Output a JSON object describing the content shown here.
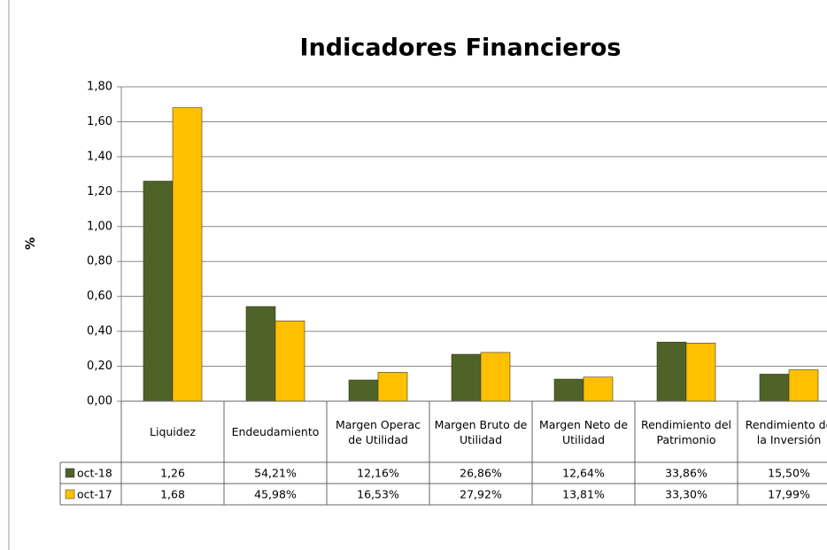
{
  "chart_data": {
    "type": "bar",
    "title": "Indicadores Financieros",
    "y_label": "%",
    "categories": [
      "Liquidez",
      "Endeudamiento",
      "Margen Operac de Utilidad",
      "Margen Bruto de Utilidad",
      "Margen Neto de Utilidad",
      "Rendimiento del Patrimonio",
      "Rendimiento de la Inversión"
    ],
    "series": [
      {
        "name": "oct-18",
        "color": "#4f6228",
        "values": [
          1.26,
          0.5421,
          0.1216,
          0.2686,
          0.1264,
          0.3386,
          0.155
        ],
        "value_labels": [
          "1,26",
          "54,21%",
          "12,16%",
          "26,86%",
          "12,64%",
          "33,86%",
          "15,50%"
        ]
      },
      {
        "name": "oct-17",
        "color": "#ffc000",
        "values": [
          1.68,
          0.4598,
          0.1653,
          0.2792,
          0.1381,
          0.333,
          0.1799
        ],
        "value_labels": [
          "1,68",
          "45,98%",
          "16,53%",
          "27,92%",
          "13,81%",
          "33,30%",
          "17,99%"
        ]
      }
    ],
    "ylim": [
      0,
      1.8
    ],
    "yticks": [
      {
        "value": 0,
        "label": "0,00"
      },
      {
        "value": 0.2,
        "label": "0,20"
      },
      {
        "value": 0.4,
        "label": "0,40"
      },
      {
        "value": 0.6,
        "label": "0,60"
      },
      {
        "value": 0.8,
        "label": "0,80"
      },
      {
        "value": 1.0,
        "label": "1,00"
      },
      {
        "value": 1.2,
        "label": "1,20"
      },
      {
        "value": 1.4,
        "label": "1,40"
      },
      {
        "value": 1.6,
        "label": "1,60"
      },
      {
        "value": 1.8,
        "label": "1,80"
      }
    ],
    "grid": true
  }
}
